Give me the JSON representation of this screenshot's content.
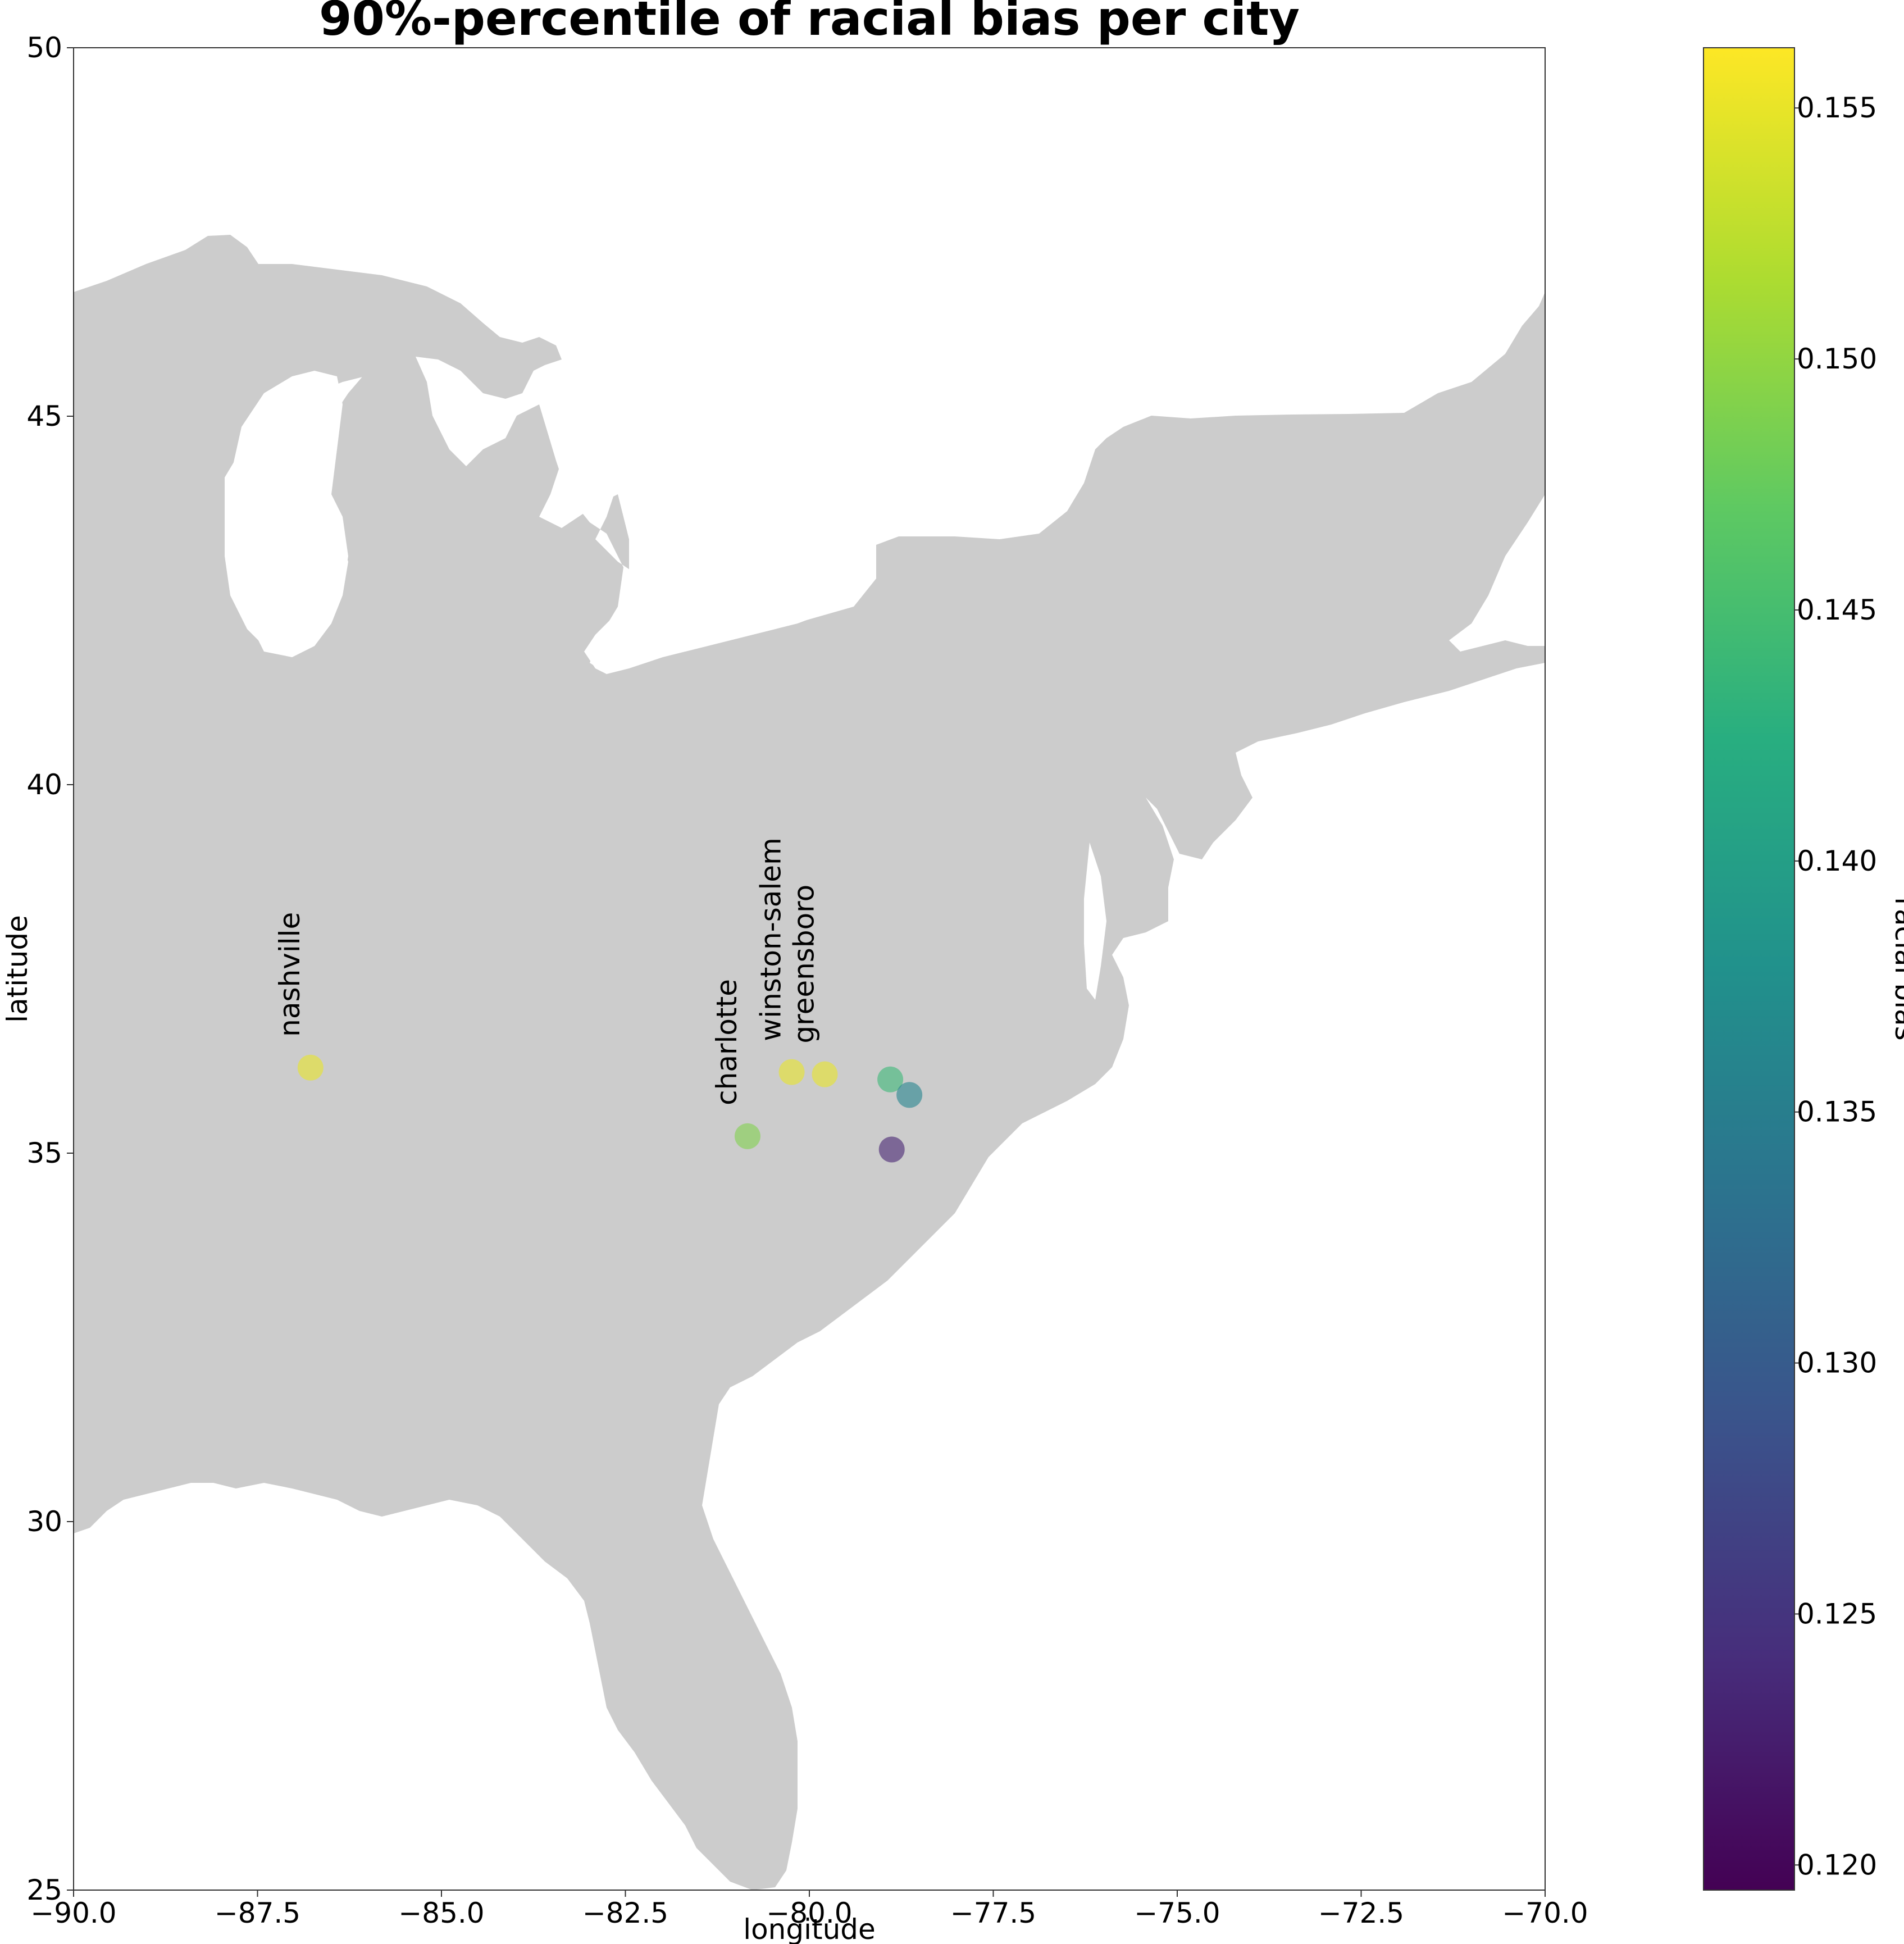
{
  "title": "90%-percentile of racial bias per city",
  "xlabel": "longitude",
  "ylabel": "latitude",
  "colorbar_label": "racial bias",
  "land_color": "#cccccc",
  "chart_data": {
    "type": "scatter",
    "title": "90%-percentile of racial bias per city",
    "xlabel": "longitude",
    "ylabel": "latitude",
    "xlim": [
      -90.0,
      -70.0
    ],
    "ylim": [
      25,
      50
    ],
    "x_ticks": [
      -90.0,
      -87.5,
      -85.0,
      -82.5,
      -80.0,
      -77.5,
      -75.0,
      -72.5,
      -70.0
    ],
    "x_tick_labels": [
      "−90.0",
      "−87.5",
      "−85.0",
      "−82.5",
      "−80.0",
      "−77.5",
      "−75.0",
      "−72.5",
      "−70.0"
    ],
    "y_ticks": [
      25,
      30,
      35,
      40,
      45,
      50
    ],
    "y_tick_labels": [
      "25",
      "30",
      "35",
      "40",
      "45",
      "50"
    ],
    "grid": false,
    "colormap": "viridis",
    "color_range": [
      0.1195,
      0.1562
    ],
    "colorbar_ticks": [
      0.12,
      0.125,
      0.13,
      0.135,
      0.14,
      0.145,
      0.15,
      0.155
    ],
    "colorbar_tick_labels": [
      "0.120",
      "0.125",
      "0.130",
      "0.135",
      "0.140",
      "0.145",
      "0.150",
      "0.155"
    ],
    "points": [
      {
        "label": "nashville",
        "lon": -86.78,
        "lat": 36.16,
        "value": 0.155
      },
      {
        "label": "charlotte",
        "lon": -80.84,
        "lat": 35.23,
        "value": 0.149
      },
      {
        "label": "winston-salem",
        "lon": -80.24,
        "lat": 36.1,
        "value": 0.155
      },
      {
        "label": "greensboro",
        "lon": -79.79,
        "lat": 36.07,
        "value": 0.155
      },
      {
        "label": "",
        "lon": -78.9,
        "lat": 36.0,
        "value": 0.144
      },
      {
        "label": "",
        "lon": -78.64,
        "lat": 35.79,
        "value": 0.136
      },
      {
        "label": "",
        "lon": -78.88,
        "lat": 35.05,
        "value": 0.123
      }
    ]
  }
}
